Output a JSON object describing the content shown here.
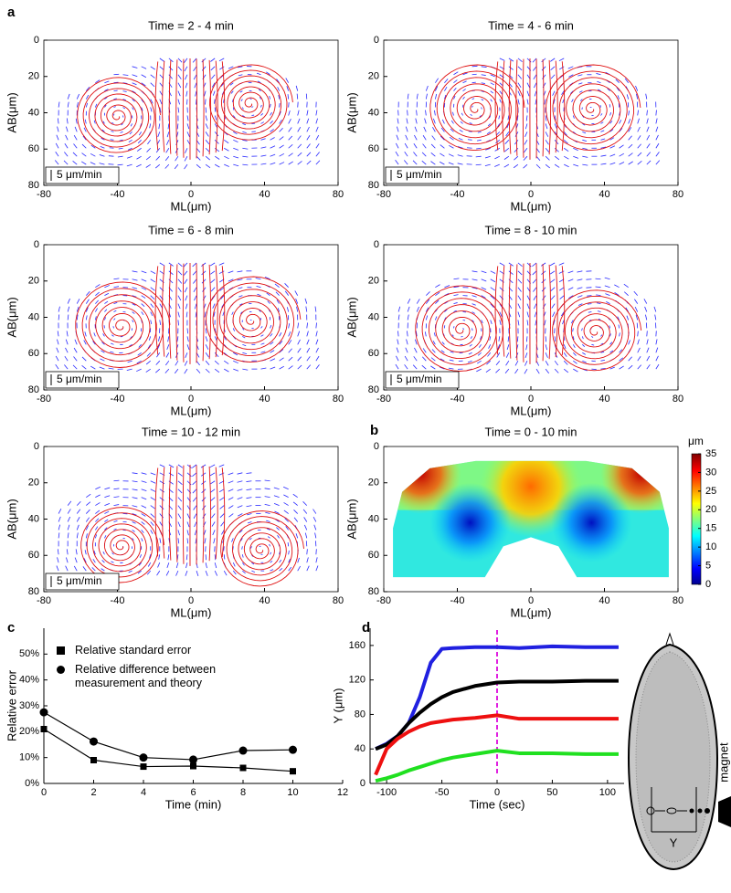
{
  "panel_labels": [
    "a",
    "b",
    "c",
    "d"
  ],
  "chart_data": [
    {
      "type": "vector_field",
      "title": "Time = 2 - 4 min",
      "xlabel": "ML(μm)",
      "ylabel": "AB(μm)",
      "scale_bar": "5 μm/min",
      "xlim": [
        -80,
        80
      ],
      "xticks": [
        -80,
        -40,
        0,
        40,
        80
      ],
      "ylim": [
        0,
        80
      ],
      "yticks": [
        0,
        20,
        40,
        60,
        80
      ],
      "y_inverted": true
    },
    {
      "type": "vector_field",
      "title": "Time = 4 - 6 min",
      "xlabel": "ML(μm)",
      "ylabel": "AB(μm)",
      "scale_bar": "5 μm/min",
      "xlim": [
        -80,
        80
      ],
      "xticks": [
        -80,
        -40,
        0,
        40,
        80
      ],
      "ylim": [
        0,
        80
      ],
      "yticks": [
        0,
        20,
        40,
        60,
        80
      ],
      "y_inverted": true
    },
    {
      "type": "vector_field",
      "title": "Time = 6 - 8 min",
      "xlabel": "ML(μm)",
      "ylabel": "AB(μm)",
      "scale_bar": "5 μm/min",
      "xlim": [
        -80,
        80
      ],
      "xticks": [
        -80,
        -40,
        0,
        40,
        80
      ],
      "ylim": [
        0,
        80
      ],
      "yticks": [
        0,
        20,
        40,
        60,
        80
      ],
      "y_inverted": true
    },
    {
      "type": "vector_field",
      "title": "Time = 8 - 10 min",
      "xlabel": "ML(μm)",
      "ylabel": "AB(μm)",
      "scale_bar": "5 μm/min",
      "xlim": [
        -80,
        80
      ],
      "xticks": [
        -80,
        -40,
        0,
        40,
        80
      ],
      "ylim": [
        0,
        80
      ],
      "yticks": [
        0,
        20,
        40,
        60,
        80
      ],
      "y_inverted": true
    },
    {
      "type": "vector_field",
      "title": "Time = 10 - 12 min",
      "xlabel": "ML(μm)",
      "ylabel": "AB(μm)",
      "scale_bar": "5 μm/min",
      "xlim": [
        -80,
        80
      ],
      "xticks": [
        -80,
        -40,
        0,
        40,
        80
      ],
      "ylim": [
        0,
        80
      ],
      "yticks": [
        0,
        20,
        40,
        60,
        80
      ],
      "y_inverted": true
    },
    {
      "type": "heatmap",
      "title": "Time = 0 - 10 min",
      "xlabel": "ML(μm)",
      "ylabel": "AB(μm)",
      "colorbar_label": "μm",
      "xlim": [
        -80,
        80
      ],
      "xticks": [
        -80,
        -40,
        0,
        40,
        80
      ],
      "ylim": [
        0,
        80
      ],
      "yticks": [
        0,
        20,
        40,
        60,
        80
      ],
      "y_inverted": true,
      "clim": [
        0,
        35
      ],
      "cticks": [
        0,
        5,
        10,
        15,
        20,
        25,
        30,
        35
      ]
    },
    {
      "type": "line",
      "xlabel": "Time (min)",
      "ylabel": "Relative error",
      "xlim": [
        0,
        12
      ],
      "xticks": [
        0,
        2,
        4,
        6,
        8,
        10,
        12
      ],
      "ylim": [
        0,
        60
      ],
      "yticks": [
        {
          "value": 0,
          "label": "0%"
        },
        {
          "value": 10,
          "label": "10%"
        },
        {
          "value": 20,
          "label": "20%"
        },
        {
          "value": 30,
          "label": "30%"
        },
        {
          "value": 40,
          "label": "40%"
        },
        {
          "value": 50,
          "label": "50%"
        }
      ],
      "x": [
        0,
        2,
        4,
        6,
        8,
        10
      ],
      "series": [
        {
          "name": "Relative standard error",
          "color": "#000000",
          "marker": "square",
          "values": [
            21,
            9,
            6.5,
            6.7,
            6,
            4.7
          ]
        },
        {
          "name": "Relative difference between measurement and theory",
          "color": "#000000",
          "marker": "circle",
          "values": [
            27.5,
            16.2,
            10,
            9.2,
            12.7,
            13
          ]
        }
      ]
    },
    {
      "type": "line",
      "xlabel": "Time (sec)",
      "ylabel": "Y (μm)",
      "xlim": [
        -115,
        115
      ],
      "xticks": [
        -100,
        -50,
        0,
        50,
        100
      ],
      "ylim": [
        0,
        180
      ],
      "yticks": [
        0,
        40,
        80,
        120,
        160
      ],
      "x": [
        -110,
        -100,
        -90,
        -80,
        -70,
        -60,
        -50,
        -40,
        -20,
        0,
        20,
        50,
        80,
        110
      ],
      "series": [
        {
          "color": "#2020e0",
          "values": [
            40,
            46,
            55,
            70,
            100,
            140,
            156,
            157,
            158,
            158,
            157,
            159,
            158,
            158
          ]
        },
        {
          "color": "#000000",
          "values": [
            40,
            45,
            55,
            70,
            82,
            92,
            100,
            106,
            113,
            117,
            118,
            118,
            119,
            119
          ]
        },
        {
          "color": "#ee1010",
          "values": [
            10,
            40,
            52,
            60,
            66,
            70,
            72,
            74,
            76,
            79,
            75,
            75,
            75,
            75
          ]
        },
        {
          "color": "#20e020",
          "values": [
            3,
            6,
            10,
            15,
            19,
            23,
            27,
            30,
            34,
            38,
            35,
            35,
            34,
            34
          ]
        }
      ],
      "vline": 0,
      "vline_color": "#e020e0",
      "annotations": [
        "magnet",
        "Y"
      ]
    }
  ]
}
